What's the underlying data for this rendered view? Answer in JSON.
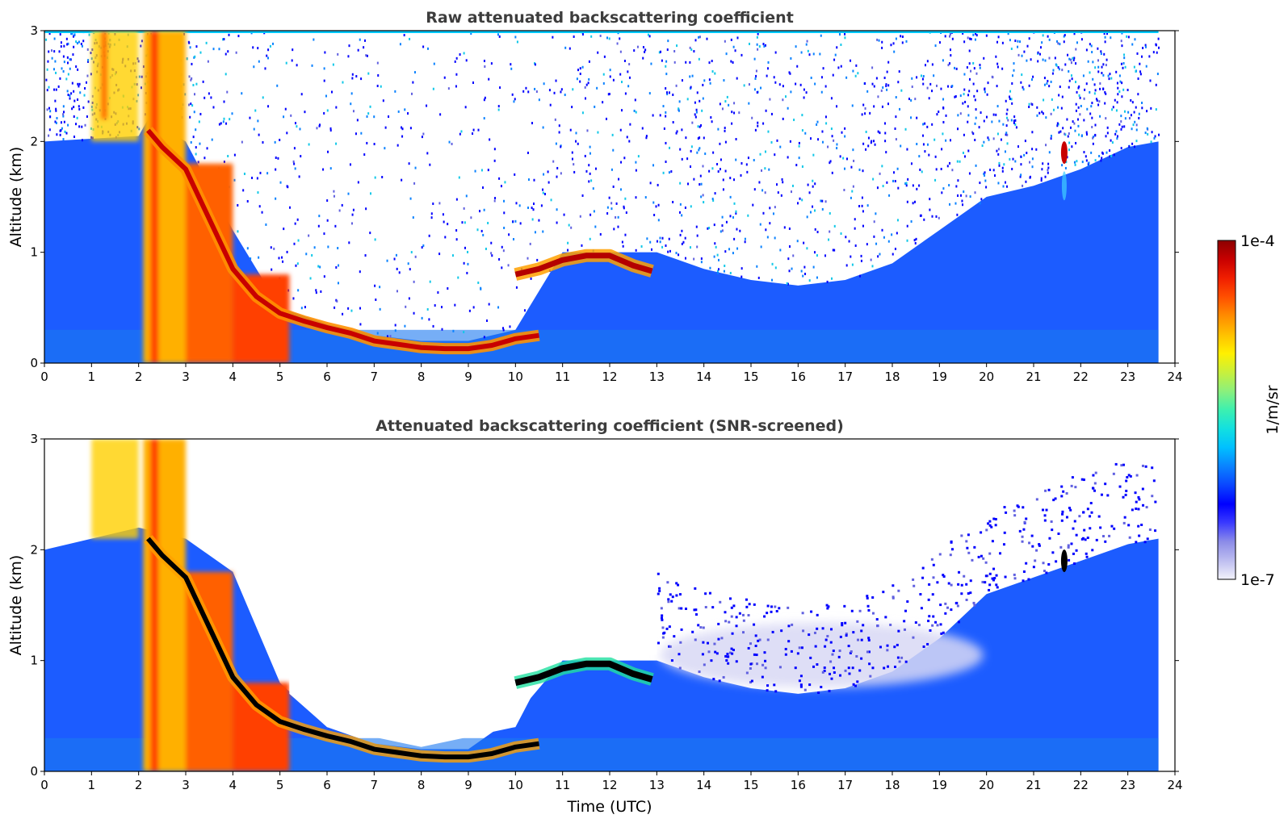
{
  "chart_data": [
    {
      "type": "heatmap",
      "title": "Raw attenuated backscattering coefficient",
      "xlabel": "",
      "ylabel": "Altitude (km)",
      "xlim": [
        0,
        24
      ],
      "ylim": [
        0,
        3
      ],
      "xticks": [
        "0",
        "1",
        "2",
        "3",
        "4",
        "5",
        "6",
        "7",
        "8",
        "9",
        "10",
        "11",
        "12",
        "13",
        "14",
        "15",
        "16",
        "17",
        "18",
        "19",
        "20",
        "21",
        "22",
        "23",
        "24"
      ],
      "yticks": [
        "0",
        "1",
        "2",
        "3"
      ],
      "data_extent_x": [
        0,
        23.65
      ],
      "features": {
        "cloud_top": {
          "x": [
            2.2,
            2.5,
            3,
            3.5,
            4,
            4.5,
            5,
            5.5,
            6,
            6.5,
            7,
            7.5,
            8,
            8.5,
            9,
            9.5,
            10,
            10.5
          ],
          "y": [
            2.1,
            1.95,
            1.75,
            1.3,
            0.85,
            0.6,
            0.45,
            0.38,
            0.32,
            0.27,
            0.2,
            0.17,
            0.14,
            0.13,
            0.13,
            0.16,
            0.22,
            0.25
          ]
        },
        "high_layer": {
          "x": [
            10,
            10.5,
            11,
            11.5,
            12,
            12.5,
            12.9
          ],
          "y": [
            0.8,
            0.85,
            0.93,
            0.97,
            0.97,
            0.88,
            0.83
          ]
        },
        "small_cloud": {
          "x": 21.65,
          "y": 1.9
        }
      }
    },
    {
      "type": "heatmap",
      "title": "Attenuated backscattering coefficient (SNR-screened)",
      "xlabel": "Time (UTC)",
      "ylabel": "Altitude (km)",
      "xlim": [
        0,
        24
      ],
      "ylim": [
        0,
        3
      ],
      "xticks": [
        "0",
        "1",
        "2",
        "3",
        "4",
        "5",
        "6",
        "7",
        "8",
        "9",
        "10",
        "11",
        "12",
        "13",
        "14",
        "15",
        "16",
        "17",
        "18",
        "19",
        "20",
        "21",
        "22",
        "23",
        "24"
      ],
      "yticks": [
        "0",
        "1",
        "2",
        "3"
      ],
      "data_extent_x": [
        0,
        23.65
      ],
      "signal_top": {
        "x": [
          0,
          1,
          2,
          3,
          4,
          5,
          6,
          7,
          8,
          9,
          10,
          11,
          12,
          13,
          14,
          15,
          16,
          17,
          18,
          19,
          20,
          21,
          22,
          23,
          23.65
        ],
        "y": [
          2.0,
          2.1,
          2.2,
          2.1,
          1.8,
          0.8,
          0.4,
          0.25,
          0.2,
          0.2,
          0.5,
          1.0,
          1.0,
          1.0,
          0.85,
          0.75,
          0.7,
          0.75,
          0.9,
          1.2,
          1.6,
          1.75,
          1.9,
          2.05,
          2.1
        ]
      }
    }
  ],
  "colorbar": {
    "max_label": "1e-4",
    "min_label": "1e-7",
    "label": "1/m/sr",
    "scale": "log",
    "range": [
      1e-07,
      0.0001
    ],
    "colors": [
      "#f2f2fa",
      "#bdbdf0",
      "#8c8ce8",
      "#3a3aff",
      "#0000ff",
      "#0a46ff",
      "#0a82ff",
      "#00c0ff",
      "#12e0e0",
      "#3cf0b0",
      "#8cf07c",
      "#c8f03c",
      "#fff000",
      "#ffc000",
      "#ff8c00",
      "#ff5000",
      "#f01e00",
      "#c80000",
      "#8c0000"
    ]
  }
}
